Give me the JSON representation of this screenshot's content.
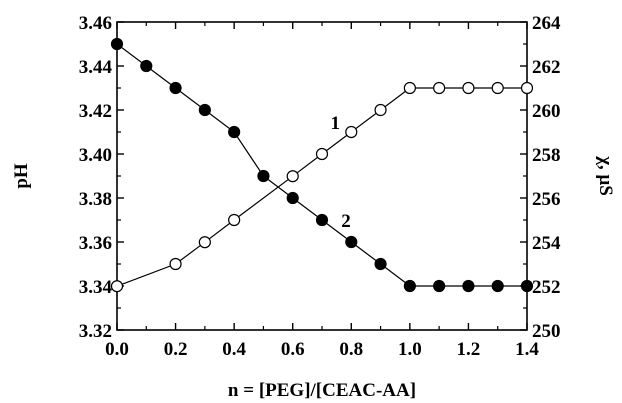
{
  "chart_data": {
    "type": "line",
    "xlabel": "n = [PEG]/[CEAC-AA]",
    "ylabel": "pH",
    "y2label": "χ, μS",
    "xlim": [
      0.0,
      1.4
    ],
    "ylim": [
      3.32,
      3.46
    ],
    "y2lim": [
      250,
      264
    ],
    "x_ticks": [
      "0.0",
      "0.2",
      "0.4",
      "0.6",
      "0.8",
      "1.0",
      "1.2",
      "1.4"
    ],
    "y_ticks": [
      "3.32",
      "3.34",
      "3.36",
      "3.38",
      "3.40",
      "3.42",
      "3.44",
      "3.46"
    ],
    "y2_ticks": [
      "250",
      "252",
      "254",
      "256",
      "258",
      "260",
      "262",
      "264"
    ],
    "grid": false,
    "series": [
      {
        "name": "1",
        "axis": "right",
        "marker": "open-circle",
        "x": [
          0.0,
          0.2,
          0.3,
          0.4,
          0.6,
          0.7,
          0.8,
          0.9,
          1.0,
          1.1,
          1.2,
          1.3,
          1.4
        ],
        "y": [
          251.99,
          253.0,
          253.99,
          255.0,
          256.99,
          258.0,
          259.0,
          260.0,
          261.0,
          261.0,
          261.0,
          261.0,
          261.0
        ]
      },
      {
        "name": "2",
        "axis": "left",
        "marker": "filled-circle",
        "x": [
          0.0,
          0.1,
          0.2,
          0.3,
          0.4,
          0.5,
          0.6,
          0.7,
          0.8,
          0.9,
          1.0,
          1.1,
          1.2,
          1.3,
          1.4
        ],
        "y": [
          3.45,
          3.44,
          3.43,
          3.42,
          3.41,
          3.39,
          3.38,
          3.37,
          3.36,
          3.35,
          3.34,
          3.34,
          3.34,
          3.34,
          3.34
        ]
      }
    ],
    "annotations": [
      {
        "text": "1",
        "series": "1"
      },
      {
        "text": "2",
        "series": "2"
      }
    ]
  }
}
